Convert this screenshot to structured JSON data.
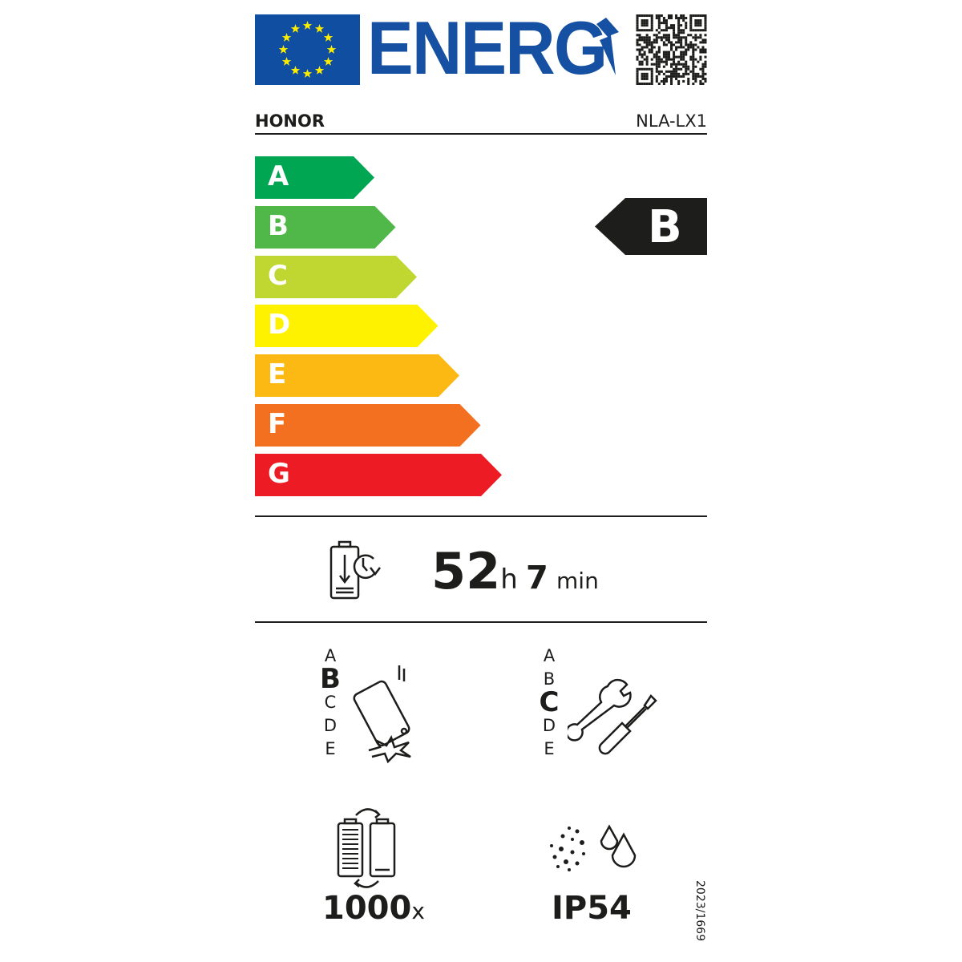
{
  "header": {
    "logo_text": "ENERG",
    "brand": "HONOR",
    "model": "NLA-LX1"
  },
  "scale": {
    "classes": [
      {
        "label": "A",
        "color": "#00a651"
      },
      {
        "label": "B",
        "color": "#50b848"
      },
      {
        "label": "C",
        "color": "#bfd730"
      },
      {
        "label": "D",
        "color": "#fff200"
      },
      {
        "label": "E",
        "color": "#fdb913"
      },
      {
        "label": "F",
        "color": "#f37021"
      },
      {
        "label": "G",
        "color": "#ed1c24"
      }
    ],
    "rating": "B"
  },
  "endurance": {
    "hours": "52",
    "hours_unit": "h",
    "minutes": "7",
    "minutes_unit": "min"
  },
  "drop_reliability": {
    "classes": [
      "A",
      "B",
      "C",
      "D",
      "E"
    ],
    "selected": "B"
  },
  "repairability": {
    "classes": [
      "A",
      "B",
      "C",
      "D",
      "E"
    ],
    "selected": "C"
  },
  "battery_cycles": {
    "value": "1000",
    "unit": "x"
  },
  "ingress": {
    "value": "IP54"
  },
  "regulation": "2023/1669"
}
